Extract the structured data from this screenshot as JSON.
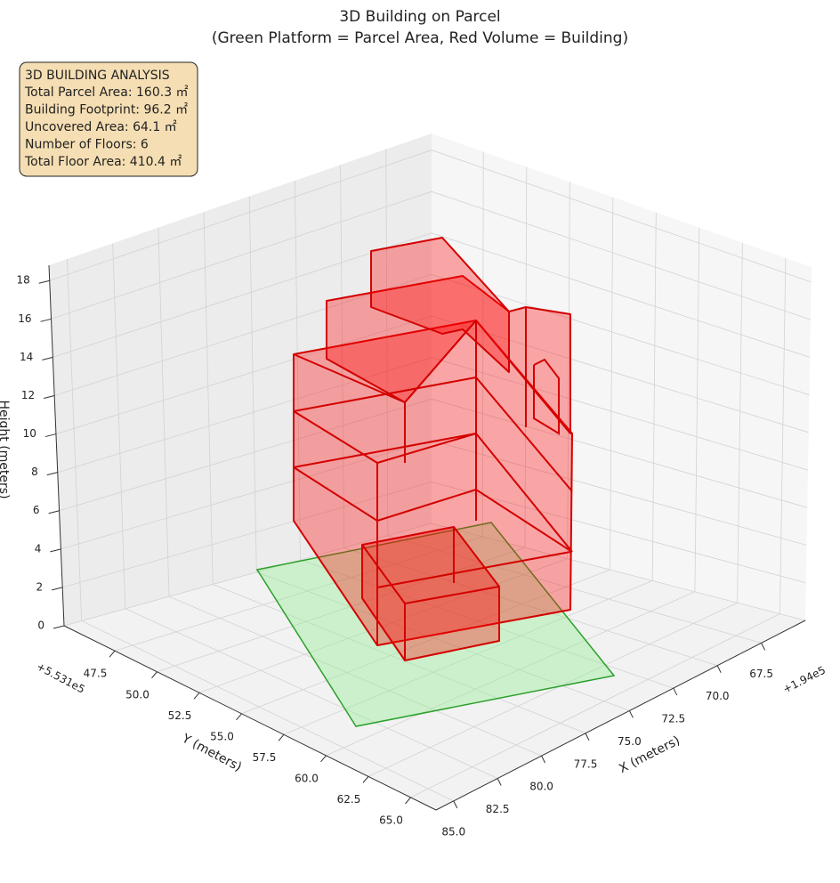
{
  "chart_data": {
    "type": "3d",
    "title": "3D Building on Parcel",
    "subtitle": "(Green Platform = Parcel Area, Red Volume = Building)",
    "xlabel": "X (meters)",
    "ylabel": "Y (meters)",
    "zlabel": "Height (meters)",
    "x_offset": "+1.94e5",
    "y_offset": "+5.531e5",
    "xlim": [
      65,
      86
    ],
    "ylim": [
      44.5,
      66.5
    ],
    "zlim": [
      0,
      18.8
    ],
    "xticks": [
      67.5,
      {
        "value": 70,
        "label": "70.0"
      },
      72.5,
      {
        "value": 75,
        "label": "75.0"
      },
      77.5,
      {
        "value": 80,
        "label": "80.0"
      },
      82.5,
      {
        "value": 85,
        "label": "85.0"
      }
    ],
    "yticks": [
      47.5,
      {
        "value": 50,
        "label": "50.0"
      },
      52.5,
      {
        "value": 55,
        "label": "55.0"
      },
      57.5,
      {
        "value": 60,
        "label": "60.0"
      },
      62.5,
      {
        "value": 65,
        "label": "65.0"
      }
    ],
    "zticks": [
      0,
      2,
      4,
      6,
      8,
      10,
      12,
      14,
      16,
      18
    ],
    "grid": true,
    "annotation": {
      "title": "3D BUILDING ANALYSIS",
      "lines": [
        "Total Parcel Area: 160.3 ㎡",
        "Building Footprint: 96.2 ㎡",
        "Uncovered Area: 64.1 ㎡",
        "Number of Floors: 6",
        "Total Floor Area: 410.4 ㎡"
      ]
    }
  }
}
